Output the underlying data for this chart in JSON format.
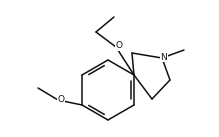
{
  "bg_color": "#ffffff",
  "line_color": "#111111",
  "line_width": 1.1,
  "font_size": 6.5,
  "figsize": [
    2.19,
    1.37
  ],
  "dpi": 100,
  "xlim": [
    0,
    219
  ],
  "ylim": [
    0,
    137
  ]
}
